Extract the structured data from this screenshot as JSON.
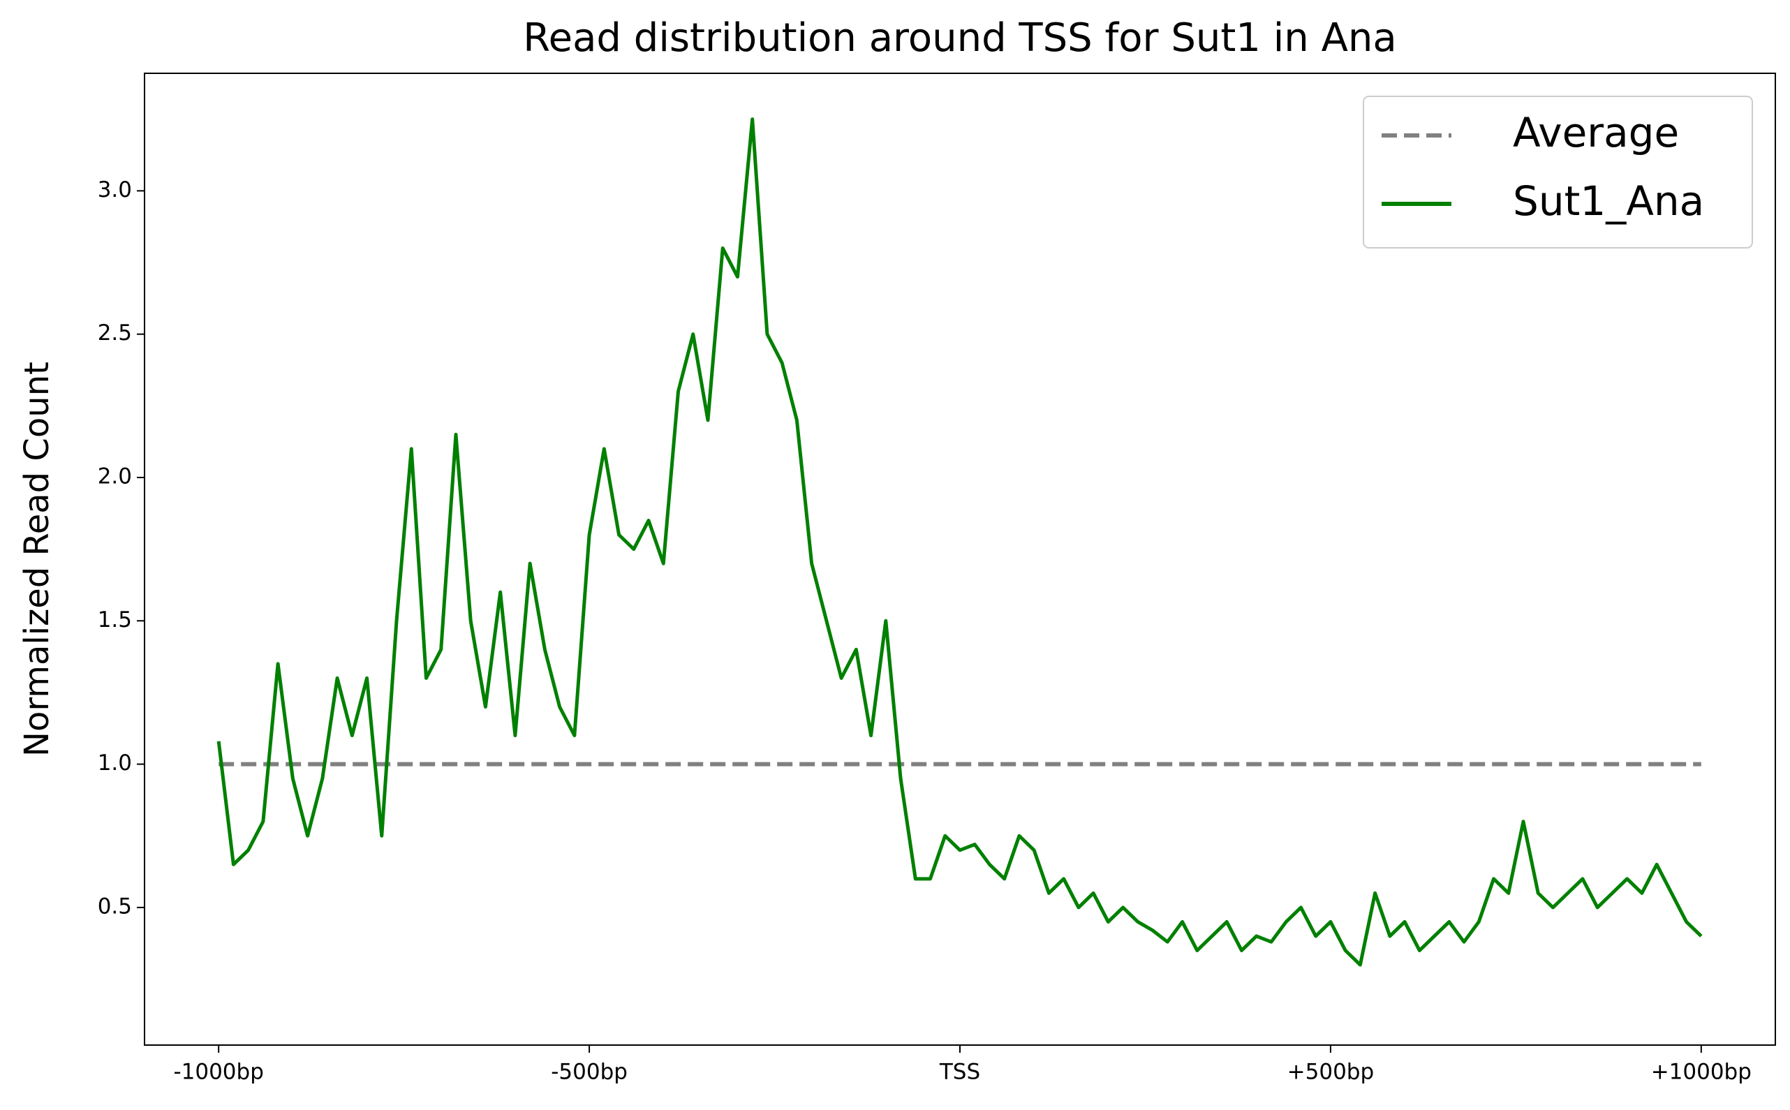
{
  "chart_data": {
    "type": "line",
    "title": "Read distribution around TSS for Sut1 in Ana",
    "y_label": "Normalized Read Count",
    "xlim": [
      -1100,
      1100
    ],
    "ylim": [
      0.02,
      3.41
    ],
    "xticks": [
      {
        "value": -1000,
        "label": "-1000bp"
      },
      {
        "value": -500,
        "label": "-500bp"
      },
      {
        "value": 0,
        "label": "TSS"
      },
      {
        "value": 500,
        "label": "+500bp"
      },
      {
        "value": 1000,
        "label": "+1000bp"
      }
    ],
    "yticks": [
      {
        "value": 0.5,
        "label": "0.5"
      },
      {
        "value": 1.0,
        "label": "1.0"
      },
      {
        "value": 1.5,
        "label": "1.5"
      },
      {
        "value": 2.0,
        "label": "2.0"
      },
      {
        "value": 2.5,
        "label": "2.5"
      },
      {
        "value": 3.0,
        "label": "3.0"
      }
    ],
    "legend": "upper right",
    "series": [
      {
        "name": "Average",
        "color": "#808080",
        "dashed": true,
        "x": [
          -1000,
          1000
        ],
        "values": [
          1,
          1
        ]
      },
      {
        "name": "Sut1_Ana",
        "color": "#008000",
        "dashed": false,
        "x": [
          -1000,
          -980,
          -960,
          -940,
          -920,
          -900,
          -880,
          -860,
          -840,
          -820,
          -800,
          -780,
          -760,
          -740,
          -720,
          -700,
          -680,
          -660,
          -640,
          -620,
          -600,
          -580,
          -560,
          -540,
          -520,
          -500,
          -480,
          -460,
          -440,
          -420,
          -400,
          -380,
          -360,
          -340,
          -320,
          -300,
          -280,
          -260,
          -240,
          -220,
          -200,
          -180,
          -160,
          -140,
          -120,
          -100,
          -80,
          -60,
          -40,
          -20,
          0,
          20,
          40,
          60,
          80,
          100,
          120,
          140,
          160,
          180,
          200,
          220,
          240,
          260,
          280,
          300,
          320,
          340,
          360,
          380,
          400,
          420,
          440,
          460,
          480,
          500,
          520,
          540,
          560,
          580,
          600,
          620,
          640,
          660,
          680,
          700,
          720,
          740,
          760,
          780,
          800,
          820,
          840,
          860,
          880,
          900,
          920,
          940,
          960,
          980,
          1000
        ],
        "values": [
          1.08,
          0.65,
          0.7,
          0.8,
          1.35,
          0.95,
          0.75,
          0.95,
          1.3,
          1.1,
          1.3,
          0.75,
          1.5,
          2.1,
          1.3,
          1.4,
          2.15,
          1.5,
          1.2,
          1.6,
          1.1,
          1.7,
          1.4,
          1.2,
          1.1,
          1.8,
          2.1,
          1.8,
          1.75,
          1.85,
          1.7,
          2.3,
          2.5,
          2.2,
          2.8,
          2.7,
          3.25,
          2.5,
          2.4,
          2.2,
          1.7,
          1.5,
          1.3,
          1.4,
          1.1,
          1.5,
          0.95,
          0.6,
          0.6,
          0.75,
          0.7,
          0.72,
          0.65,
          0.6,
          0.75,
          0.7,
          0.55,
          0.6,
          0.5,
          0.55,
          0.45,
          0.5,
          0.45,
          0.42,
          0.38,
          0.45,
          0.35,
          0.4,
          0.45,
          0.35,
          0.4,
          0.38,
          0.45,
          0.5,
          0.4,
          0.45,
          0.35,
          0.3,
          0.55,
          0.4,
          0.45,
          0.35,
          0.4,
          0.45,
          0.38,
          0.45,
          0.6,
          0.55,
          0.8,
          0.55,
          0.5,
          0.55,
          0.6,
          0.5,
          0.55,
          0.6,
          0.55,
          0.65,
          0.55,
          0.45,
          0.4
        ]
      }
    ]
  }
}
